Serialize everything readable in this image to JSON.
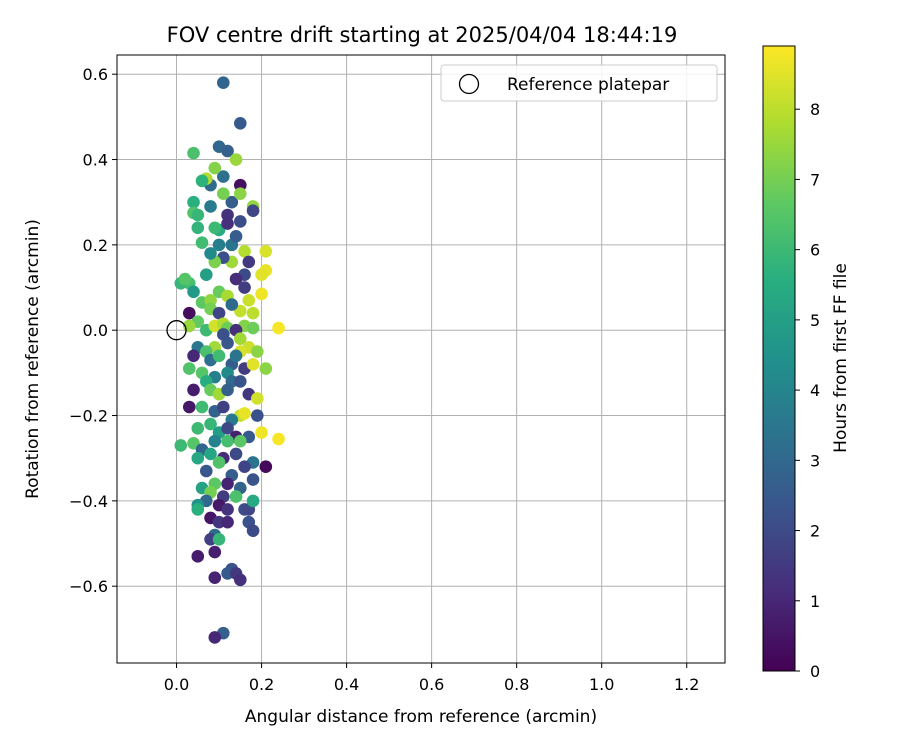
{
  "chart_data": {
    "type": "scatter",
    "title": "FOV centre drift starting at 2025/04/04 18:44:19",
    "xlabel": "Angular distance from reference (arcmin)",
    "ylabel": "Rotation from reference (arcmin)",
    "xlim": [
      -0.14,
      1.29
    ],
    "ylim": [
      -0.78,
      0.645
    ],
    "xticks": [
      "0.0",
      "0.2",
      "0.4",
      "0.6",
      "0.8",
      "1.0",
      "1.2"
    ],
    "yticks": [
      "−0.6",
      "−0.4",
      "−0.2",
      "0.0",
      "0.2",
      "0.4",
      "0.6"
    ],
    "xtick_values": [
      0.0,
      0.2,
      0.4,
      0.6,
      0.8,
      1.0,
      1.2
    ],
    "ytick_values": [
      -0.6,
      -0.4,
      -0.2,
      0.0,
      0.2,
      0.4,
      0.6
    ],
    "grid": true,
    "legend": {
      "placement": "top-right",
      "entries": [
        "Reference platepar"
      ]
    },
    "colorbar": {
      "label": "Hours from first FF file",
      "colormap": "viridis",
      "range": [
        0,
        8.9
      ],
      "ticks": [
        "0",
        "1",
        "2",
        "3",
        "4",
        "5",
        "6",
        "7",
        "8"
      ],
      "tick_values": [
        0,
        1,
        2,
        3,
        4,
        5,
        6,
        7,
        8
      ]
    },
    "reference_point": {
      "name": "Reference platepar",
      "x": 0.0,
      "y": 0.0
    },
    "series": [
      {
        "points": [
          [
            0.11,
            0.58,
            2.9
          ],
          [
            0.15,
            0.485,
            2.5
          ],
          [
            0.1,
            0.43,
            3.0
          ],
          [
            0.12,
            0.42,
            2.7
          ],
          [
            0.14,
            0.4,
            7.5
          ],
          [
            0.15,
            0.34,
            0.4
          ],
          [
            0.08,
            0.34,
            3.1
          ],
          [
            0.11,
            0.36,
            3.3
          ],
          [
            0.09,
            0.38,
            7.2
          ],
          [
            0.07,
            0.355,
            7.8
          ],
          [
            0.04,
            0.415,
            6.3
          ],
          [
            0.06,
            0.35,
            5.7
          ],
          [
            0.13,
            0.3,
            2.6
          ],
          [
            0.15,
            0.32,
            7.3
          ],
          [
            0.11,
            0.32,
            7.0
          ],
          [
            0.18,
            0.29,
            7.4
          ],
          [
            0.18,
            0.28,
            1.9
          ],
          [
            0.12,
            0.27,
            1.3
          ],
          [
            0.15,
            0.255,
            2.1
          ],
          [
            0.04,
            0.3,
            5.6
          ],
          [
            0.04,
            0.275,
            6.4
          ],
          [
            0.05,
            0.27,
            5.9
          ],
          [
            0.08,
            0.29,
            3.7
          ],
          [
            0.05,
            0.24,
            5.8
          ],
          [
            0.1,
            0.235,
            5.4
          ],
          [
            0.09,
            0.24,
            6.0
          ],
          [
            0.06,
            0.205,
            6.1
          ],
          [
            0.13,
            0.2,
            3.4
          ],
          [
            0.16,
            0.185,
            7.9
          ],
          [
            0.21,
            0.185,
            8.4
          ],
          [
            0.17,
            0.16,
            1.5
          ],
          [
            0.13,
            0.16,
            7.6
          ],
          [
            0.11,
            0.17,
            2.2
          ],
          [
            0.09,
            0.16,
            7.1
          ],
          [
            0.07,
            0.13,
            5.0
          ],
          [
            0.21,
            0.14,
            8.6
          ],
          [
            0.2,
            0.13,
            8.5
          ],
          [
            0.16,
            0.13,
            2.0
          ],
          [
            0.14,
            0.12,
            1.1
          ],
          [
            0.03,
            0.11,
            6.2
          ],
          [
            0.01,
            0.11,
            5.9
          ],
          [
            0.02,
            0.12,
            6.5
          ],
          [
            0.04,
            0.09,
            4.8
          ],
          [
            0.1,
            0.09,
            6.8
          ],
          [
            0.12,
            0.08,
            7.7
          ],
          [
            0.17,
            0.07,
            8.2
          ],
          [
            0.2,
            0.085,
            8.7
          ],
          [
            0.06,
            0.065,
            6.6
          ],
          [
            0.08,
            0.07,
            7.4
          ],
          [
            0.08,
            0.05,
            7.0
          ],
          [
            0.1,
            0.04,
            1.8
          ],
          [
            0.15,
            0.045,
            8.1
          ],
          [
            0.18,
            0.04,
            8.0
          ],
          [
            0.03,
            0.04,
            0.3
          ],
          [
            0.05,
            0.02,
            6.7
          ],
          [
            0.03,
            0.01,
            7.5
          ],
          [
            0.07,
            0.0,
            6.0
          ],
          [
            0.09,
            0.01,
            8.3
          ],
          [
            0.11,
            0.015,
            7.8
          ],
          [
            0.12,
            0.005,
            6.9
          ],
          [
            0.16,
            0.01,
            7.2
          ],
          [
            0.18,
            0.005,
            6.9
          ],
          [
            0.24,
            0.005,
            8.8
          ],
          [
            0.14,
            0.0,
            1.2
          ],
          [
            0.15,
            -0.02,
            7.6
          ],
          [
            0.17,
            -0.04,
            8.2
          ],
          [
            0.19,
            -0.05,
            7.3
          ],
          [
            0.15,
            -0.05,
            8.4
          ],
          [
            0.12,
            -0.03,
            2.4
          ],
          [
            0.09,
            -0.04,
            7.6
          ],
          [
            0.05,
            -0.04,
            3.5
          ],
          [
            0.07,
            -0.05,
            6.3
          ],
          [
            0.04,
            -0.06,
            1.0
          ],
          [
            0.08,
            -0.07,
            3.2
          ],
          [
            0.1,
            -0.06,
            6.1
          ],
          [
            0.13,
            -0.08,
            2.6
          ],
          [
            0.16,
            -0.09,
            1.6
          ],
          [
            0.18,
            -0.08,
            8.5
          ],
          [
            0.21,
            -0.09,
            7.3
          ],
          [
            0.03,
            -0.09,
            6.4
          ],
          [
            0.06,
            -0.1,
            6.5
          ],
          [
            0.09,
            -0.11,
            3.8
          ],
          [
            0.12,
            -0.1,
            4.2
          ],
          [
            0.07,
            -0.12,
            5.5
          ],
          [
            0.13,
            -0.12,
            3.0
          ],
          [
            0.15,
            -0.12,
            2.3
          ],
          [
            0.04,
            -0.14,
            0.7
          ],
          [
            0.08,
            -0.14,
            6.8
          ],
          [
            0.1,
            -0.15,
            7.6
          ],
          [
            0.17,
            -0.15,
            1.4
          ],
          [
            0.19,
            -0.16,
            8.3
          ],
          [
            0.03,
            -0.18,
            0.6
          ],
          [
            0.06,
            -0.18,
            6.1
          ],
          [
            0.09,
            -0.19,
            2.8
          ],
          [
            0.11,
            -0.18,
            1.7
          ],
          [
            0.15,
            -0.2,
            8.1
          ],
          [
            0.16,
            -0.195,
            8.6
          ],
          [
            0.19,
            -0.2,
            2.2
          ],
          [
            0.13,
            -0.21,
            3.6
          ],
          [
            0.08,
            -0.22,
            5.9
          ],
          [
            0.05,
            -0.23,
            6.0
          ],
          [
            0.1,
            -0.24,
            4.9
          ],
          [
            0.12,
            -0.23,
            1.9
          ],
          [
            0.14,
            -0.25,
            0.8
          ],
          [
            0.2,
            -0.24,
            8.7
          ],
          [
            0.24,
            -0.255,
            8.8
          ],
          [
            0.17,
            -0.25,
            2.5
          ],
          [
            0.12,
            -0.26,
            6.2
          ],
          [
            0.15,
            -0.26,
            6.6
          ],
          [
            0.09,
            -0.26,
            3.9
          ],
          [
            0.04,
            -0.265,
            6.5
          ],
          [
            0.01,
            -0.27,
            6.0
          ],
          [
            0.06,
            -0.28,
            2.9
          ],
          [
            0.08,
            -0.29,
            5.2
          ],
          [
            0.11,
            -0.3,
            1.1
          ],
          [
            0.14,
            -0.29,
            2.0
          ],
          [
            0.18,
            -0.31,
            3.4
          ],
          [
            0.21,
            -0.32,
            0.2
          ],
          [
            0.16,
            -0.32,
            1.8
          ],
          [
            0.1,
            -0.31,
            6.4
          ],
          [
            0.05,
            -0.3,
            5.3
          ],
          [
            0.07,
            -0.33,
            2.4
          ],
          [
            0.13,
            -0.34,
            2.6
          ],
          [
            0.12,
            -0.36,
            0.9
          ],
          [
            0.09,
            -0.36,
            6.6
          ],
          [
            0.15,
            -0.37,
            2.8
          ],
          [
            0.18,
            -0.35,
            2.3
          ],
          [
            0.06,
            -0.37,
            5.1
          ],
          [
            0.08,
            -0.38,
            7.0
          ],
          [
            0.11,
            -0.39,
            1.6
          ],
          [
            0.14,
            -0.39,
            6.3
          ],
          [
            0.07,
            -0.4,
            3.0
          ],
          [
            0.1,
            -0.41,
            0.6
          ],
          [
            0.05,
            -0.41,
            4.5
          ],
          [
            0.05,
            -0.42,
            5.6
          ],
          [
            0.12,
            -0.42,
            1.3
          ],
          [
            0.16,
            -0.42,
            2.1
          ],
          [
            0.17,
            -0.42,
            1.9
          ],
          [
            0.18,
            -0.4,
            5.4
          ],
          [
            0.08,
            -0.44,
            0.5
          ],
          [
            0.1,
            -0.45,
            1.4
          ],
          [
            0.12,
            -0.45,
            1.0
          ],
          [
            0.17,
            -0.45,
            2.2
          ],
          [
            0.18,
            -0.47,
            2.0
          ],
          [
            0.09,
            -0.48,
            3.1
          ],
          [
            0.08,
            -0.49,
            1.7
          ],
          [
            0.1,
            -0.49,
            5.9
          ],
          [
            0.09,
            -0.52,
            0.8
          ],
          [
            0.05,
            -0.53,
            0.7
          ],
          [
            0.13,
            -0.56,
            2.3
          ],
          [
            0.12,
            -0.57,
            2.5
          ],
          [
            0.14,
            -0.57,
            1.5
          ],
          [
            0.15,
            -0.585,
            1.2
          ],
          [
            0.09,
            -0.58,
            0.9
          ],
          [
            0.11,
            -0.71,
            2.7
          ],
          [
            0.09,
            -0.72,
            1.0
          ],
          [
            0.12,
            0.25,
            1.2
          ],
          [
            0.14,
            0.22,
            2.6
          ],
          [
            0.1,
            0.2,
            3.8
          ],
          [
            0.08,
            0.18,
            4.2
          ],
          [
            0.16,
            0.1,
            1.6
          ],
          [
            0.13,
            0.06,
            3.1
          ],
          [
            0.11,
            -0.01,
            2.2
          ],
          [
            0.14,
            -0.06,
            3.4
          ],
          [
            0.12,
            -0.14,
            2.7
          ]
        ]
      }
    ]
  }
}
